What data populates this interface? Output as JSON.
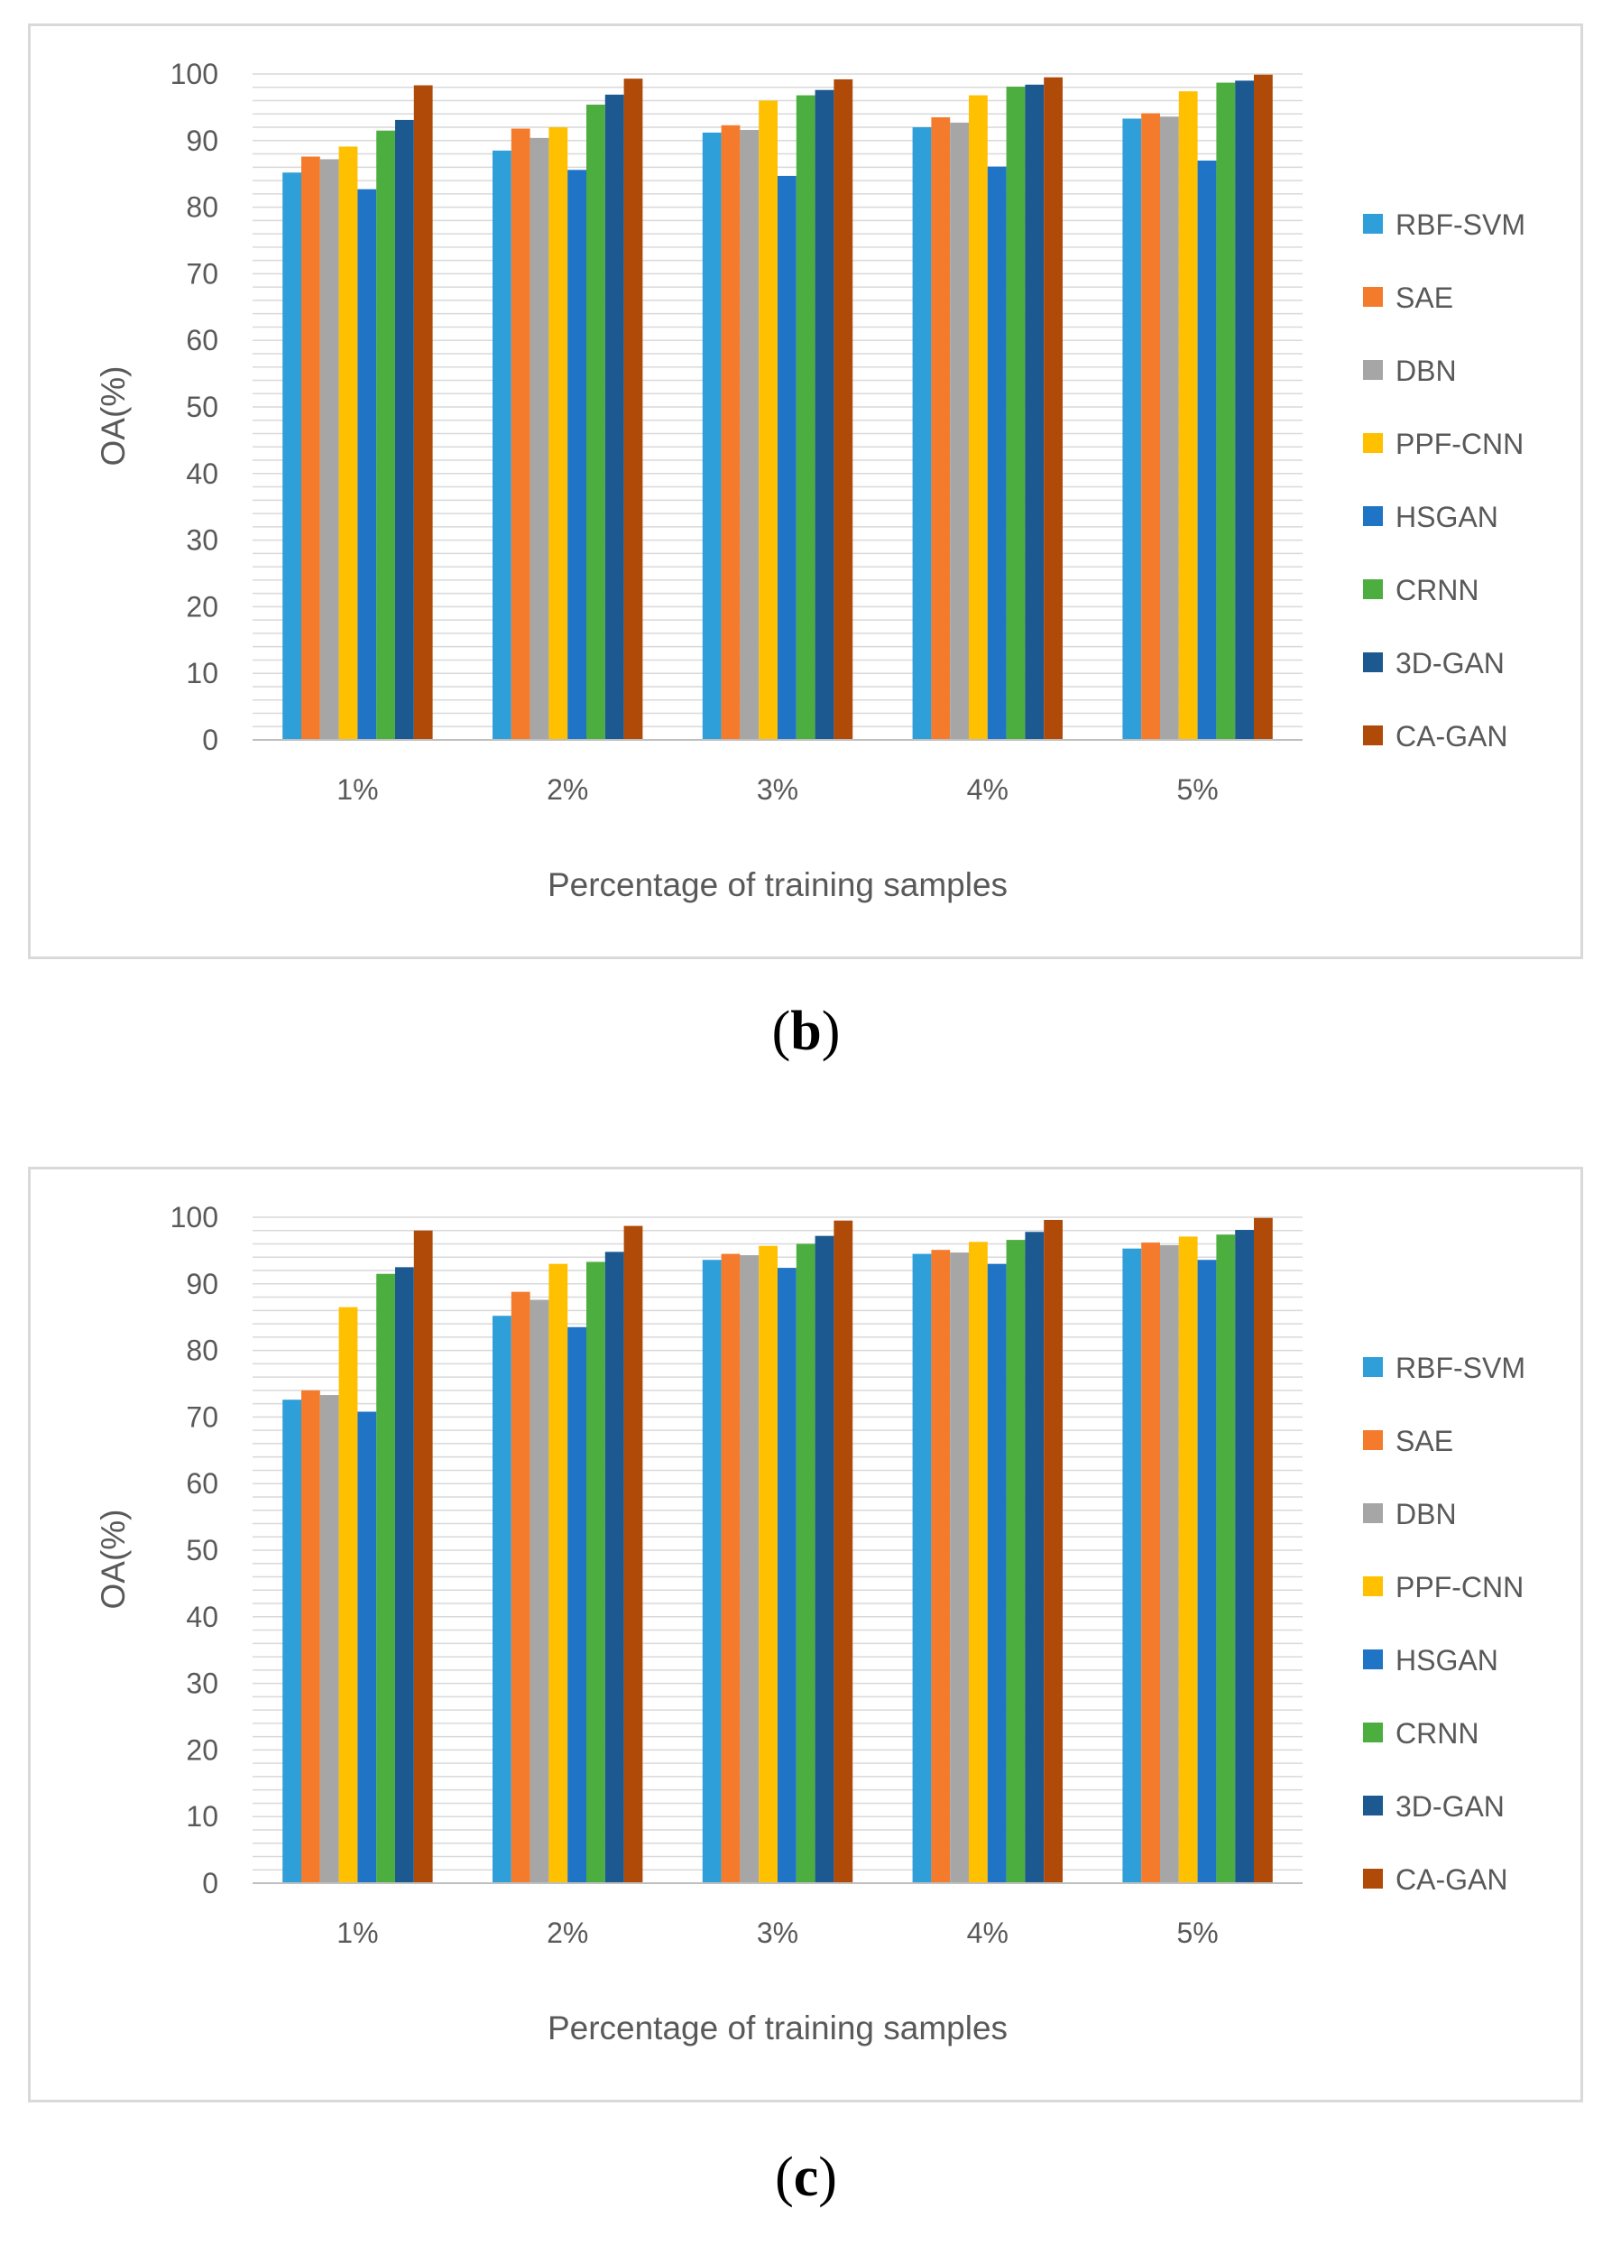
{
  "colors": {
    "RBF-SVM": "#2E9FD8",
    "SAE": "#F47B2C",
    "DBN": "#A6A6A6",
    "PPF-CNN": "#FFC000",
    "HSGAN": "#1F74C5",
    "CRNN": "#4CAE3F",
    "3D-GAN": "#1C5990",
    "CA-GAN": "#B04A08",
    "grid": "#d9d9d9",
    "axis": "#bfbfbf",
    "text": "#595959"
  },
  "captions": {
    "b": {
      "open": "(",
      "letter": "b",
      "close": ")"
    },
    "c": {
      "open": "(",
      "letter": "c",
      "close": ")"
    }
  },
  "chart_data": [
    {
      "type": "bar",
      "panel": "b",
      "title": "",
      "xlabel": "Percentage of training samples",
      "ylabel": "OA(%)",
      "ylim": [
        0,
        100
      ],
      "yticks": [
        0,
        10,
        20,
        30,
        40,
        50,
        60,
        70,
        80,
        90,
        100
      ],
      "minor_gridline_step": 2,
      "legend_position": "right",
      "categories": [
        "1%",
        "2%",
        "3%",
        "4%",
        "5%"
      ],
      "series": [
        {
          "name": "RBF-SVM",
          "values": [
            85.2,
            88.5,
            91.2,
            92.0,
            93.3
          ]
        },
        {
          "name": "SAE",
          "values": [
            87.6,
            91.8,
            92.3,
            93.5,
            94.1
          ]
        },
        {
          "name": "DBN",
          "values": [
            87.2,
            90.4,
            91.6,
            92.7,
            93.6
          ]
        },
        {
          "name": "PPF-CNN",
          "values": [
            89.1,
            92.0,
            96.0,
            96.8,
            97.4
          ]
        },
        {
          "name": "HSGAN",
          "values": [
            82.7,
            85.6,
            84.7,
            86.1,
            87.0
          ]
        },
        {
          "name": "CRNN",
          "values": [
            91.5,
            95.4,
            96.8,
            98.1,
            98.7
          ]
        },
        {
          "name": "3D-GAN",
          "values": [
            93.1,
            96.9,
            97.6,
            98.4,
            99.0
          ]
        },
        {
          "name": "CA-GAN",
          "values": [
            98.3,
            99.3,
            99.2,
            99.5,
            99.9
          ]
        }
      ]
    },
    {
      "type": "bar",
      "panel": "c",
      "title": "",
      "xlabel": "Percentage of training samples",
      "ylabel": "OA(%)",
      "ylim": [
        0,
        100
      ],
      "yticks": [
        0,
        10,
        20,
        30,
        40,
        50,
        60,
        70,
        80,
        90,
        100
      ],
      "minor_gridline_step": 2,
      "legend_position": "right",
      "categories": [
        "1%",
        "2%",
        "3%",
        "4%",
        "5%"
      ],
      "series": [
        {
          "name": "RBF-SVM",
          "values": [
            72.6,
            85.2,
            93.6,
            94.5,
            95.3
          ]
        },
        {
          "name": "SAE",
          "values": [
            74.0,
            88.8,
            94.5,
            95.1,
            96.2
          ]
        },
        {
          "name": "DBN",
          "values": [
            73.3,
            87.6,
            94.3,
            94.7,
            95.8
          ]
        },
        {
          "name": "PPF-CNN",
          "values": [
            86.5,
            93.0,
            95.7,
            96.3,
            97.1
          ]
        },
        {
          "name": "HSGAN",
          "values": [
            70.8,
            83.5,
            92.4,
            93.0,
            93.6
          ]
        },
        {
          "name": "CRNN",
          "values": [
            91.5,
            93.3,
            96.0,
            96.6,
            97.4
          ]
        },
        {
          "name": "3D-GAN",
          "values": [
            92.5,
            94.8,
            97.2,
            97.8,
            98.1
          ]
        },
        {
          "name": "CA-GAN",
          "values": [
            98.0,
            98.7,
            99.5,
            99.6,
            99.9
          ]
        }
      ]
    }
  ]
}
